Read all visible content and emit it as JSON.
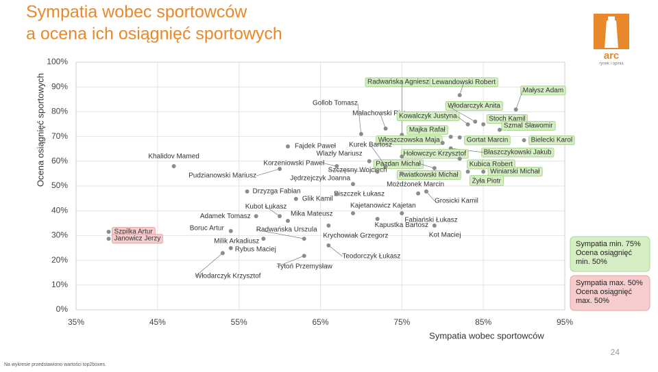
{
  "chart_data": {
    "type": "scatter",
    "title": [
      "Sympatia wobec sportowców",
      "a ocena ich osiągnięć sportowych"
    ],
    "x_label": "Sympatia wobec sportowców",
    "y_label": "Ocena osiągnięć sportowych",
    "xlim": [
      35,
      95
    ],
    "ylim": [
      0,
      100
    ],
    "xticks": [
      {
        "value": 35,
        "label": "35%"
      },
      {
        "value": 45,
        "label": "45%"
      },
      {
        "value": 55,
        "label": "55%"
      },
      {
        "value": 65,
        "label": "65%"
      },
      {
        "value": 75,
        "label": "75%"
      },
      {
        "value": 85,
        "label": "85%"
      },
      {
        "value": 95,
        "label": "95%"
      }
    ],
    "yticks": [
      {
        "value": 0,
        "label": "0%"
      },
      {
        "value": 10,
        "label": "10%"
      },
      {
        "value": 20,
        "label": "20%"
      },
      {
        "value": 30,
        "label": "30%"
      },
      {
        "value": 40,
        "label": "40%"
      },
      {
        "value": 50,
        "label": "50%"
      },
      {
        "value": 60,
        "label": "60%"
      },
      {
        "value": 70,
        "label": "70%"
      },
      {
        "value": 80,
        "label": "80%"
      },
      {
        "value": 90,
        "label": "90%"
      },
      {
        "value": {
          "value": 100,
          "label": "100%"
        },
        "label": "100%"
      }
    ],
    "grid": true,
    "color": "#8c8c8c",
    "legend": [
      {
        "lines": [
          "Sympatia min. 75%",
          "Ocena osiągnięć",
          "min. 50%"
        ],
        "color": "#d5eec4",
        "border": "#a9d88d"
      },
      {
        "lines": [
          "Sympatia max. 50%",
          "Ocena osiągnięć",
          "max. 50%"
        ],
        "color": "#f6cccc",
        "border": "#e8a3a3"
      }
    ],
    "points": [
      {
        "label": "Khalidov Mamed",
        "x": 47.0,
        "y": 58.0
      },
      {
        "label": "Szpilka Artur",
        "x": 39.0,
        "y": 31.5,
        "highlight": 1
      },
      {
        "label": "Janowicz Jerzy",
        "x": 39.0,
        "y": 28.7,
        "highlight": 1
      },
      {
        "label": "Gollob Tomasz",
        "x": 70.0,
        "y": 71.0
      },
      {
        "label": "Małachowski Piotr",
        "x": 73.0,
        "y": 73.2
      },
      {
        "label": "Radwańska Agnieszka",
        "x": 75.0,
        "y": 70.7,
        "highlight": 0
      },
      {
        "label": "Lewandowski Robert",
        "x": 82.1,
        "y": 86.7,
        "highlight": 0
      },
      {
        "label": "Małysz Adam",
        "x": 89.0,
        "y": 80.9,
        "highlight": 0
      },
      {
        "label": "Włodarczyk Anita",
        "x": 84.0,
        "y": 76.0,
        "highlight": 0
      },
      {
        "label": "Kowalczyk Justyna",
        "x": 83.1,
        "y": 74.9,
        "highlight": 0
      },
      {
        "label": "Stoch Kamil",
        "x": 85.0,
        "y": 74.9,
        "highlight": 0
      },
      {
        "label": "Szmal Sławomir",
        "x": 87.0,
        "y": 72.7,
        "highlight": 0
      },
      {
        "label": "Majka Rafał",
        "x": 81.0,
        "y": 69.9,
        "highlight": 0
      },
      {
        "label": "Gortat Marcin",
        "x": 82.1,
        "y": 69.6,
        "highlight": 0
      },
      {
        "label": "Bielecki Karol",
        "x": 90.0,
        "y": 68.5,
        "highlight": 0
      },
      {
        "label": "Włoszczowska Maja",
        "x": 80.0,
        "y": 67.4,
        "highlight": 0
      },
      {
        "label": "Błaszczykowski Jakub",
        "x": 81.0,
        "y": 65.2,
        "highlight": 0
      },
      {
        "label": "Hołowczyc Krzysztof",
        "x": 75.0,
        "y": 61.9,
        "highlight": 0
      },
      {
        "label": "Kubica Robert",
        "x": 82.1,
        "y": 61.0,
        "highlight": 0
      },
      {
        "label": "Pazdan Michał",
        "x": 79.0,
        "y": 57.2,
        "highlight": 0
      },
      {
        "label": "Winiarski Michał",
        "x": 85.0,
        "y": 55.8,
        "highlight": 0
      },
      {
        "label": "Kwiatkowski Michał",
        "x": 75.0,
        "y": 55.0,
        "highlight": 0
      },
      {
        "label": "Żyła Piotr",
        "x": 83.1,
        "y": 55.8,
        "highlight": 0
      },
      {
        "label": "Kurek Bartosz",
        "x": 73.0,
        "y": 58.0
      },
      {
        "label": "Wlazły Mariusz",
        "x": 71.0,
        "y": 60.0
      },
      {
        "label": "Fajdek Paweł",
        "x": 61.0,
        "y": 66.0
      },
      {
        "label": "Korzeniowski Paweł",
        "x": 67.0,
        "y": 58.0
      },
      {
        "label": "Pudzianowski Mariusz",
        "x": 60.0,
        "y": 56.9
      },
      {
        "label": "Szczęsny Wojciech",
        "x": 72.0,
        "y": 55.8
      },
      {
        "label": "Jędrzejczyk Joanna",
        "x": 69.0,
        "y": 50.8
      },
      {
        "label": "Drzyzga Fabian",
        "x": 56.0,
        "y": 47.8
      },
      {
        "label": "Możdżonek Marcin",
        "x": 77.0,
        "y": 47.0
      },
      {
        "label": "Grosicki Kamil",
        "x": 78.0,
        "y": 47.8
      },
      {
        "label": "Piszczek Łukasz",
        "x": 67.0,
        "y": 46.7
      },
      {
        "label": "Glik Kamil",
        "x": 62.0,
        "y": 44.8
      },
      {
        "label": "Kajetanowicz Kajetan",
        "x": 69.0,
        "y": 39.0
      },
      {
        "label": "Kubot Łukasz",
        "x": 60.0,
        "y": 37.8
      },
      {
        "label": "Adamek Tomasz",
        "x": 57.1,
        "y": 37.8
      },
      {
        "label": "Mika Mateusz",
        "x": 61.0,
        "y": 35.9
      },
      {
        "label": "Fabiański Łukasz",
        "x": 75.0,
        "y": 39.0
      },
      {
        "label": "Kapustka Bartosz",
        "x": 72.0,
        "y": 36.7
      },
      {
        "label": "Krychowiak Grzegorz",
        "x": 66.0,
        "y": 34.0
      },
      {
        "label": "Kot Maciej",
        "x": 79.0,
        "y": 34.0
      },
      {
        "label": "Boruc Artur",
        "x": 54.0,
        "y": 31.8
      },
      {
        "label": "Radwańska Urszula",
        "x": 63.0,
        "y": 28.7
      },
      {
        "label": "Milik Arkadiusz",
        "x": 58.0,
        "y": 28.7
      },
      {
        "label": "Rybus Maciej",
        "x": 54.0,
        "y": 24.9
      },
      {
        "label": "Teodorczyk Łukasz",
        "x": 66.0,
        "y": 26.0
      },
      {
        "label": "Tytoń Przemysław",
        "x": 63.0,
        "y": 21.8
      },
      {
        "label": "Włodarczyk Krzysztof",
        "x": 53.0,
        "y": 22.9
      }
    ]
  },
  "logo": {
    "name": "arc",
    "tagline": "rynek i opinia"
  },
  "page_number": "24",
  "footnote": "Na wykresie przedstawiono wartości top2boxes."
}
